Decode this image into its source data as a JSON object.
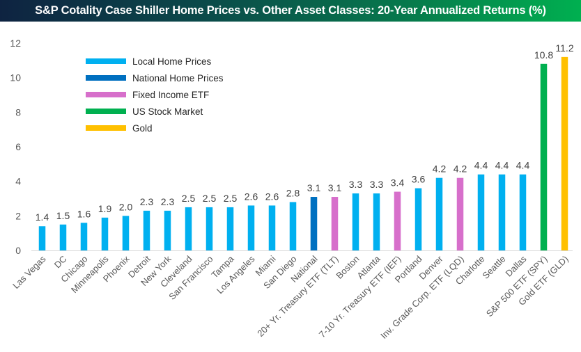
{
  "title": "S&P Cotality Case Shiller Home Prices vs. Other Asset Classes: 20-Year Annualized Returns (%)",
  "colors": {
    "local": "#00b0f0",
    "national": "#0070c0",
    "fixed_income": "#d76fcb",
    "stock": "#00b050",
    "gold": "#ffc000"
  },
  "chart_data": {
    "type": "bar",
    "title": "S&P Cotality Case Shiller Home Prices vs. Other Asset Classes: 20-Year Annualized Returns (%)",
    "xlabel": "",
    "ylabel": "",
    "ylim": [
      0,
      12
    ],
    "yticks": [
      0,
      2,
      4,
      6,
      8,
      10,
      12
    ],
    "grid": false,
    "legend_position": "top-left",
    "legend": [
      {
        "key": "local",
        "label": "Local Home Prices"
      },
      {
        "key": "national",
        "label": "National Home Prices"
      },
      {
        "key": "fixed_income",
        "label": "Fixed Income ETF"
      },
      {
        "key": "stock",
        "label": "US Stock Market"
      },
      {
        "key": "gold",
        "label": "Gold"
      }
    ],
    "categories": [
      "Las Vegas",
      "DC",
      "Chicago",
      "Minneapolis",
      "Phoenix",
      "Detroit",
      "New York",
      "Cleveland",
      "San Francisco",
      "Tampa",
      "Los Angeles",
      "Miami",
      "San Diego",
      "National",
      "20+ Yr. Treasury ETF (TLT)",
      "Boston",
      "Atlanta",
      "7-10 Yr. Treasury ETF (IEF)",
      "Portland",
      "Denver",
      "Inv. Grade Corp. ETF (LQD)",
      "Charlotte",
      "Seattle",
      "Dallas",
      "S&P 500 ETF (SPY)",
      "Gold ETF (GLD)"
    ],
    "values": [
      1.4,
      1.5,
      1.6,
      1.9,
      2.0,
      2.3,
      2.3,
      2.5,
      2.5,
      2.5,
      2.6,
      2.6,
      2.8,
      3.1,
      3.1,
      3.3,
      3.3,
      3.4,
      3.6,
      4.2,
      4.2,
      4.4,
      4.4,
      4.4,
      10.8,
      11.2
    ],
    "value_labels": [
      "1.4",
      "1.5",
      "1.6",
      "1.9",
      "2.0",
      "2.3",
      "2.3",
      "2.5",
      "2.5",
      "2.5",
      "2.6",
      "2.6",
      "2.8",
      "3.1",
      "3.1",
      "3.3",
      "3.3",
      "3.4",
      "3.6",
      "4.2",
      "4.2",
      "4.4",
      "4.4",
      "4.4",
      "10.8",
      "11.2"
    ],
    "groups": [
      "local",
      "local",
      "local",
      "local",
      "local",
      "local",
      "local",
      "local",
      "local",
      "local",
      "local",
      "local",
      "local",
      "national",
      "fixed_income",
      "local",
      "local",
      "fixed_income",
      "local",
      "local",
      "fixed_income",
      "local",
      "local",
      "local",
      "stock",
      "gold"
    ]
  }
}
